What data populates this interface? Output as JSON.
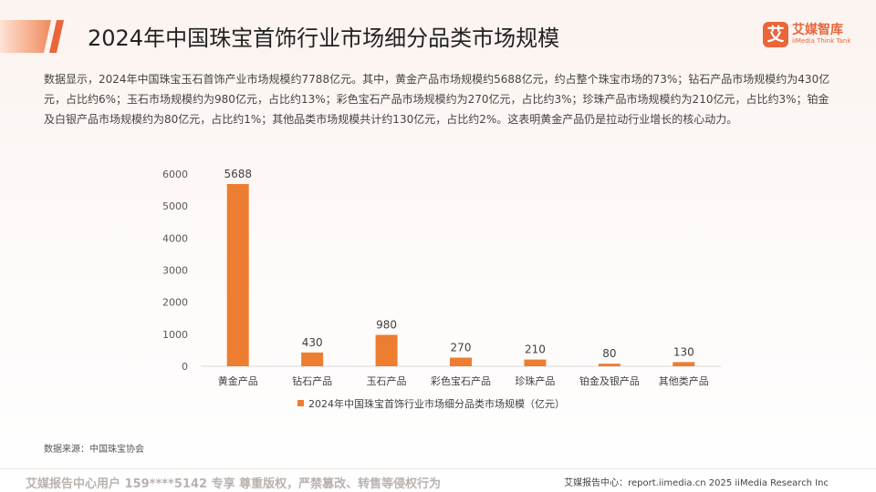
{
  "header": {
    "title": "2024年中国珠宝首饰行业市场细分品类市场规模",
    "logo_name": "艾媒智库",
    "logo_sub": "iiMedia Think Tank",
    "logo_glyph": "艾"
  },
  "description": "数据显示，2024年中国珠宝玉石首饰产业市场规模约7788亿元。其中，黄金产品市场规模约5688亿元，约占整个珠宝市场的73%；钻石产品市场规模约为430亿元，占比约6%；玉石市场规模约为980亿元，占比约13%；彩色宝石产品市场规模约为270亿元，占比约3%；珍珠产品市场规模约为210亿元，占比约3%；铂金及白银产品市场规模约为80亿元，占比约1%；其他品类市场规模共计约130亿元，占比约2%。这表明黄金产品仍是拉动行业增长的核心动力。",
  "chart_data": {
    "type": "bar",
    "categories": [
      "黄金产品",
      "钻石产品",
      "玉石产品",
      "彩色宝石产品",
      "珍珠产品",
      "铂金及银产品",
      "其他类产品"
    ],
    "series": [
      {
        "name": "2024年中国珠宝首饰行业市场细分品类市场规模（亿元）",
        "values": [
          5688,
          430,
          980,
          270,
          210,
          80,
          130
        ]
      }
    ],
    "yticks": [
      0,
      1000,
      2000,
      3000,
      4000,
      5000,
      6000
    ],
    "ylim": [
      0,
      6000
    ],
    "grid": false,
    "legend": "bottom",
    "bar_color": "#ed7d31"
  },
  "source": "数据来源：中国珠宝协会",
  "footer": {
    "watermark": "艾媒报告中心用户 159****5142 专享 尊重版权，严禁篡改、转售等侵权行为",
    "copyright": "艾媒报告中心：report.iimedia.cn  2025 iiMedia Research Inc"
  },
  "colors": {
    "accent": "#e8663a",
    "bar": "#ed7d31"
  }
}
